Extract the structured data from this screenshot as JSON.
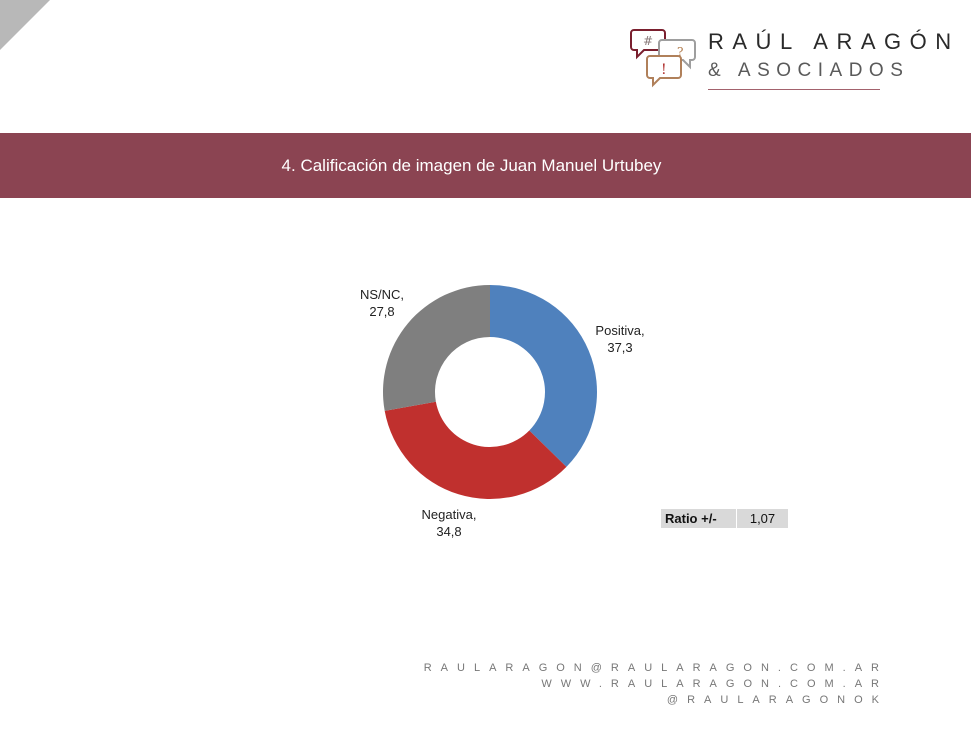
{
  "header": {
    "brand_title": "RAÚL ARAGÓN",
    "brand_subtitle": "& ASOCIADOS",
    "logo_icon_glyphs": [
      "#",
      "?",
      "!"
    ]
  },
  "banner": {
    "title": "4. Calificación de imagen de Juan Manuel Urtubey",
    "color": "#8b4452"
  },
  "chart_data": {
    "type": "pie",
    "variant": "donut",
    "title": "4. Calificación de imagen de Juan Manuel Urtubey",
    "categories": [
      "Positiva",
      "Negativa",
      "NS/NC"
    ],
    "values": [
      37.3,
      34.8,
      27.8
    ],
    "value_labels": [
      "37,3",
      "34,8",
      "27,8"
    ],
    "colors": [
      "#4f81bd",
      "#c0302e",
      "#7f7f7f"
    ],
    "legend": "none (data labels)",
    "start_angle_deg": 0,
    "direction": "clockwise"
  },
  "labels": {
    "positiva": {
      "name": "Positiva,",
      "value": "37,3"
    },
    "negativa": {
      "name": "Negativa,",
      "value": "34,8"
    },
    "nsnc": {
      "name": "NS/NC,",
      "value": "27,8"
    }
  },
  "ratio": {
    "label": "Ratio +/-",
    "value": "1,07"
  },
  "footer": {
    "email": "RAULARAGON@RAULARAGON.COM.AR",
    "website": "WWW.RAULARAGON.COM.AR",
    "social": "@RAULARAGONOK"
  }
}
